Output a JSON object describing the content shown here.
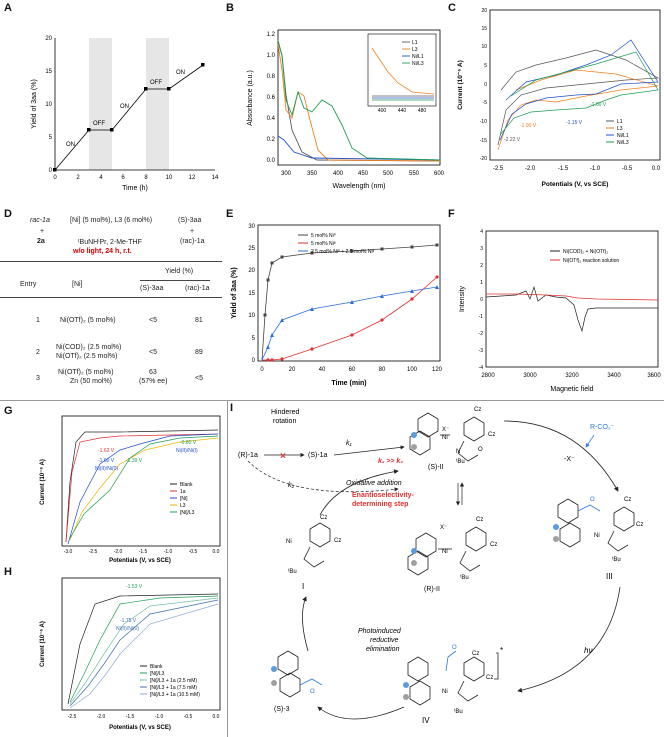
{
  "panel_labels": {
    "A": "A",
    "B": "B",
    "C": "C",
    "D": "D",
    "E": "E",
    "F": "F",
    "G": "G",
    "H": "H",
    "I": "I"
  },
  "panel_a": {
    "ylabel": "Yield of 3aa (%)",
    "xlabel": "Time (h)",
    "on_label": "ON",
    "off_label": "OFF",
    "yticks": [
      "0",
      "5",
      "10",
      "15",
      "20"
    ],
    "xticks": [
      "0",
      "2",
      "4",
      "6",
      "8",
      "10",
      "12",
      "14"
    ]
  },
  "panel_b": {
    "ylabel": "Absorbance (a.u.)",
    "xlabel": "Wavelength (nm)",
    "yticks": [
      "0.0",
      "0.2",
      "0.4",
      "0.6",
      "0.8",
      "1.0",
      "1.2"
    ],
    "xticks": [
      "300",
      "350",
      "400",
      "450",
      "500",
      "550",
      "600"
    ],
    "inset_xticks": [
      "400",
      "440",
      "480"
    ],
    "legend": [
      "L1",
      "L3",
      "Ni/L1",
      "Ni/L3"
    ]
  },
  "panel_c": {
    "ylabel": "Current (10⁻⁶ A)",
    "xlabel": "Potentials (V, vs SCE)",
    "xticks": [
      "-2.5",
      "-2.0",
      "-1.5",
      "-1.0",
      "-0.5",
      "0.0"
    ],
    "yticks": [
      "-20",
      "-15",
      "-10",
      "-5",
      "0",
      "5",
      "10",
      "15",
      "20"
    ],
    "legend": [
      "L1",
      "L3",
      "Ni/L1",
      "Ni/L3"
    ],
    "ann": [
      "-1.90 V",
      "-2.22 V",
      "-1.15 V",
      "-1.00 V"
    ]
  },
  "panel_d": {
    "racemate": "rac-1a",
    "plus": "+",
    "reagent": "2a",
    "conditions_1": "[Ni] (5 mol%), L3 (6 mol%)",
    "conditions_2": "ᵗBuNHⁱPr, 2-Me-THF",
    "conditions_3": "w/o light, 24 h, r.t.",
    "product": "(S)-3aa",
    "leftover": "(rac)-1a",
    "header_entry": "Entry",
    "header_ni": "[Ni]",
    "header_yield": "Yield (%)",
    "header_col1": "(S)-3aa",
    "header_col2": "(rac)-1a",
    "rows": [
      {
        "entry": "1",
        "ni": "Ni(OTf)₂ (5 mol%)",
        "ni2": "",
        "y1": "<5",
        "y1b": "",
        "y2": "81"
      },
      {
        "entry": "2",
        "ni": "Ni(COD)₂ (2.5 mol%)",
        "ni2": "Ni(OTf)₂ (2.5 mol%)",
        "y1": "<5",
        "y1b": "",
        "y2": "89"
      },
      {
        "entry": "3",
        "ni": "Ni(OTf)₂ (5 mol%)",
        "ni2": "Zn (50 mol%)",
        "y1": "63",
        "y1b": "(57% ee)",
        "y2": "<5"
      }
    ]
  },
  "panel_e": {
    "ylabel": "Yield of 3aa (%)",
    "xlabel": "Time (min)",
    "xticks": [
      "0",
      "20",
      "40",
      "60",
      "80",
      "100",
      "120"
    ],
    "yticks": [
      "0",
      "5",
      "10",
      "15",
      "20",
      "25",
      "30"
    ],
    "legend": [
      "5 mol% Ni⁰",
      "5 mol% Niᴵᴵ",
      "2.5 mol% Ni⁰ + 2.5 mol% Niᴵᴵ"
    ]
  },
  "panel_f": {
    "ylabel": "Intensity",
    "xlabel": "Magnetic field",
    "xticks": [
      "2800",
      "3000",
      "3200",
      "3400",
      "3600"
    ],
    "yticks": [
      "-4",
      "-3",
      "-2",
      "-1",
      "0",
      "1",
      "2",
      "3",
      "4"
    ],
    "legend": [
      "Ni(COD)₂ + Ni(OTf)₂",
      "Ni(OTf)₂ reaction solution"
    ]
  },
  "panel_g": {
    "ylabel": "Current (10⁻⁶ A)",
    "xlabel": "Potentials (V, vs SCE)",
    "xticks": [
      "-3.0",
      "-2.5",
      "-2.0",
      "-1.5",
      "-1.0",
      "-0.5",
      "0.0"
    ],
    "legend": [
      "Blank",
      "1a",
      "[Ni]",
      "L3",
      "[Ni]/L3"
    ],
    "ann": [
      "-1.62 V",
      "-1.60 V",
      "-1.39 V",
      "-0.80 V",
      "Ni(II)/Ni(0)",
      "Ni(II)/Ni(0)",
      "Ni(II)/Ni(I)"
    ]
  },
  "panel_h": {
    "ylabel": "Current (10⁻⁶ A)",
    "xlabel": "Potentials (V, vs SCE)",
    "xticks": [
      "-2.5",
      "-2.0",
      "-1.5",
      "-1.0",
      "-0.5",
      "0.0"
    ],
    "legend": [
      "Blank",
      "[Ni]/L3",
      "[Ni]/L3 + 1a (2.5 mM)",
      "[Ni]/L3 + 1a (7.5 mM)",
      "[Ni]/L3 + 1a (10.5 mM)"
    ],
    "ann": [
      "-1.53 V",
      "-1.75 V",
      "Ni(II)/Ni(0)"
    ]
  },
  "panel_i": {
    "hindered": "Hindered",
    "rotation": "rotation",
    "r1a": "(R)-1a",
    "s1a": "(S)-1a",
    "k1": "k₁",
    "k2": "k₂",
    "k1k2": "k₁ >> k₂",
    "oxidative": "Oxidative addition",
    "enantio_1": "Enantioselectivity-",
    "enantio_2": "determining step",
    "s_ii": "(S)-II",
    "r_ii": "(R)-II",
    "i_label": "I",
    "iii_label": "III",
    "iv_label": "IV",
    "s3": "(S)-3",
    "rco2": "R-CO₂⁻",
    "minus_x": "-X⁻",
    "photo_1": "Photoinduced",
    "photo_2": "reductive",
    "photo_3": "elimination",
    "hv": "hν",
    "cz": "Cz",
    "ni": "Ni",
    "tbu": "ᵗBu",
    "xm": "X⁻",
    "n": "N",
    "o": "O",
    "star": "*"
  }
}
